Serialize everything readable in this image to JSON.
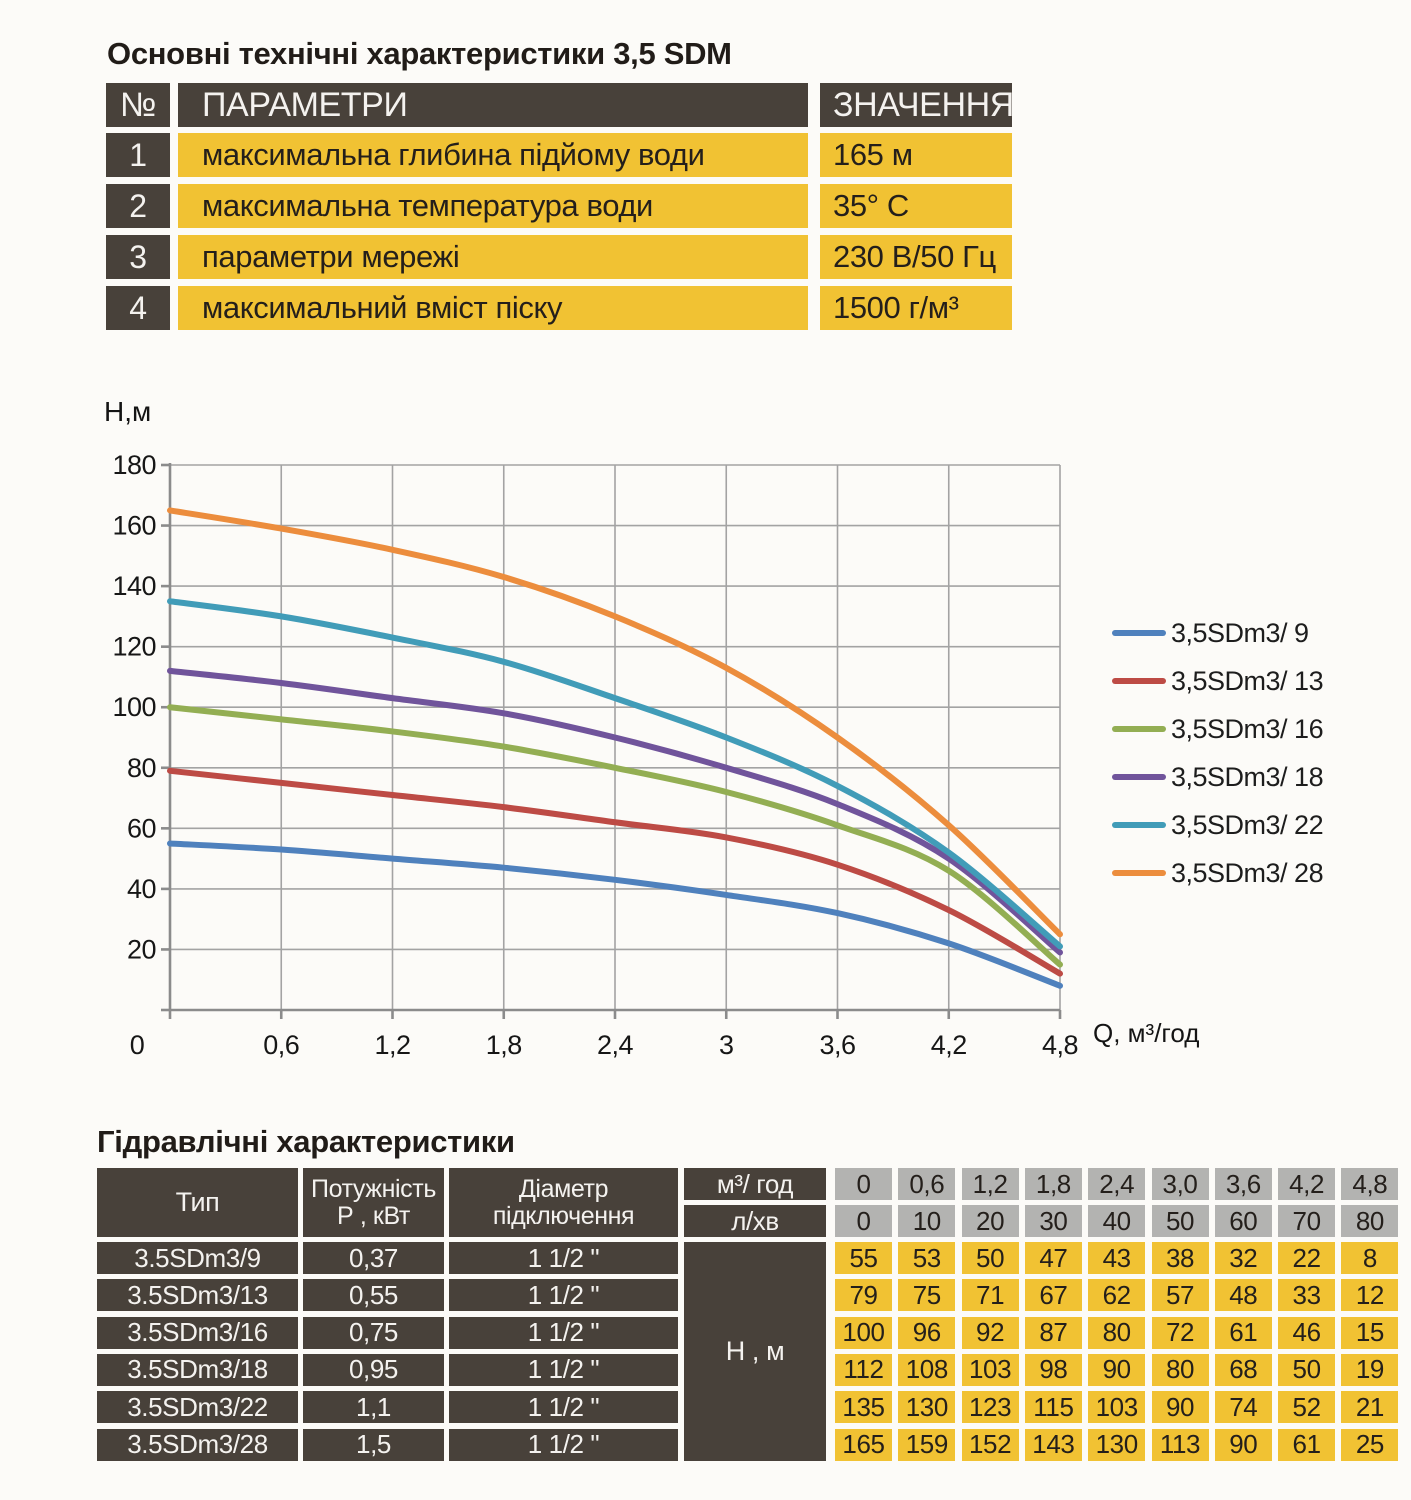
{
  "title": "Основні технічні характеристики 3,5 SDM",
  "specs_table": {
    "headers": {
      "num": "№",
      "param": "ПАРАМЕТРИ",
      "value": "ЗНАЧЕННЯ"
    },
    "rows": [
      {
        "num": "1",
        "param": "максимальна глибина підйому води",
        "value": "165 м"
      },
      {
        "num": "2",
        "param": "максимальна температура води",
        "value": "35° С"
      },
      {
        "num": "3",
        "param": "параметри мережі",
        "value": "230 В/50 Гц"
      },
      {
        "num": "4",
        "param": "максимальний вміст піску",
        "value": "1500 г/м³"
      }
    ]
  },
  "chart_data": {
    "type": "line",
    "title": "",
    "ylabel": "Н,м",
    "xlabel": "Q,  м³/год",
    "x": [
      0,
      0.6,
      1.2,
      1.8,
      2.4,
      3.0,
      3.6,
      4.2,
      4.8
    ],
    "x_tick_labels": [
      "0",
      "0,6",
      "1,2",
      "1,8",
      "2,4",
      "3",
      "3,6",
      "4,2",
      "4,8"
    ],
    "y_ticks": [
      180,
      160,
      140,
      120,
      100,
      80,
      60,
      40,
      20
    ],
    "ylim": [
      0,
      180
    ],
    "xlim": [
      0,
      4.8
    ],
    "grid": true,
    "legend_position": "right",
    "series": [
      {
        "name": "3,5SDm3/ 9",
        "color": "#4f81bd",
        "values": [
          55,
          53,
          50,
          47,
          43,
          38,
          32,
          22,
          8
        ]
      },
      {
        "name": "3,5SDm3/ 13",
        "color": "#bd4b45",
        "values": [
          79,
          75,
          71,
          67,
          62,
          57,
          48,
          33,
          12
        ]
      },
      {
        "name": "3,5SDm3/ 16",
        "color": "#93ae53",
        "values": [
          100,
          96,
          92,
          87,
          80,
          72,
          61,
          46,
          15
        ]
      },
      {
        "name": "3,5SDm3/ 18",
        "color": "#70549b",
        "values": [
          112,
          108,
          103,
          98,
          90,
          80,
          68,
          50,
          19
        ]
      },
      {
        "name": "3,5SDm3/ 22",
        "color": "#419cb8",
        "values": [
          135,
          130,
          123,
          115,
          103,
          90,
          74,
          52,
          21
        ]
      },
      {
        "name": "3,5SDm3/ 28",
        "color": "#ec8d3d",
        "values": [
          165,
          159,
          152,
          143,
          130,
          113,
          90,
          61,
          25
        ]
      }
    ]
  },
  "hydraulics": {
    "title": "Гідравлічні характеристики",
    "col_type": "Тип",
    "col_power_1": "Потужність",
    "col_power_2": "Р , кВт",
    "col_dia_1": "Діаметр",
    "col_dia_2": "підключення",
    "flow_header_m3": "м³/ год",
    "flow_header_lmin": "л/хв",
    "h_label": "Н , м",
    "flow_m3": [
      "0",
      "0,6",
      "1,2",
      "1,8",
      "2,4",
      "3,0",
      "3,6",
      "4,2",
      "4,8"
    ],
    "flow_lmin": [
      "0",
      "10",
      "20",
      "30",
      "40",
      "50",
      "60",
      "70",
      "80"
    ],
    "rows": [
      {
        "type": "3.5SDm3/9",
        "power": "0,37",
        "diameter": "1 1/2 \"",
        "values": [
          "55",
          "53",
          "50",
          "47",
          "43",
          "38",
          "32",
          "22",
          "8"
        ]
      },
      {
        "type": "3.5SDm3/13",
        "power": "0,55",
        "diameter": "1 1/2 \"",
        "values": [
          "79",
          "75",
          "71",
          "67",
          "62",
          "57",
          "48",
          "33",
          "12"
        ]
      },
      {
        "type": "3.5SDm3/16",
        "power": "0,75",
        "diameter": "1 1/2 \"",
        "values": [
          "100",
          "96",
          "92",
          "87",
          "80",
          "72",
          "61",
          "46",
          "15"
        ]
      },
      {
        "type": "3.5SDm3/18",
        "power": "0,95",
        "diameter": "1 1/2 \"",
        "values": [
          "112",
          "108",
          "103",
          "98",
          "90",
          "80",
          "68",
          "50",
          "19"
        ]
      },
      {
        "type": "3.5SDm3/22",
        "power": "1,1",
        "diameter": "1 1/2 \"",
        "values": [
          "135",
          "130",
          "123",
          "115",
          "103",
          "90",
          "74",
          "52",
          "21"
        ]
      },
      {
        "type": "3.5SDm3/28",
        "power": "1,5",
        "diameter": "1 1/2 \"",
        "values": [
          "165",
          "159",
          "152",
          "143",
          "130",
          "113",
          "90",
          "61",
          "25"
        ]
      }
    ]
  }
}
